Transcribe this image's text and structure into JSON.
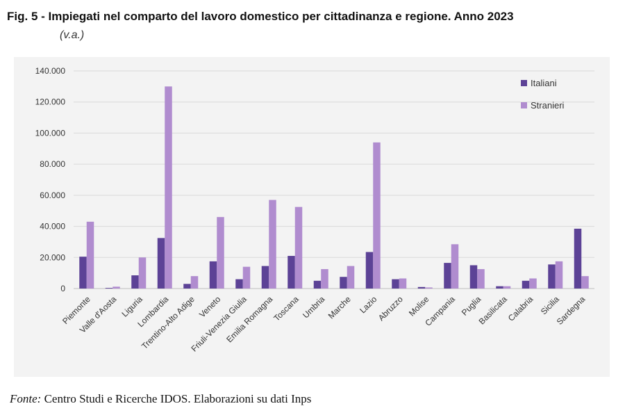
{
  "title": "Fig. 5 - Impiegati nel comparto del lavoro domestico per cittadinanza e regione. Anno 2023",
  "subtitle": "(v.a.)",
  "source": {
    "label": "Fonte:",
    "text": "Centro Studi e Ricerche IDOS. Elaborazioni su dati Inps"
  },
  "colors": {
    "italiani": "#5c4296",
    "stranieri": "#b08ccf",
    "grid": "#d9d9d9",
    "axis_text": "#333333"
  },
  "chart_data": {
    "type": "bar",
    "title": "Fig. 5 - Impiegati nel comparto del lavoro domestico per cittadinanza e regione. Anno 2023",
    "xlabel": "",
    "ylabel": "",
    "ylim": [
      0,
      140000
    ],
    "yticks": [
      "0",
      "20.000",
      "40.000",
      "60.000",
      "80.000",
      "100.000",
      "120.000",
      "140.000"
    ],
    "legend_position": "top-right",
    "categories": [
      "Piemonte",
      "Valle d'Aosta",
      "Liguria",
      "Lombardia",
      "Trentino-Alto Adige",
      "Veneto",
      "Friuli-Venezia Giulia",
      "Emilia Romagna",
      "Toscana",
      "Umbria",
      "Marche",
      "Lazio",
      "Abruzzo",
      "Molise",
      "Campania",
      "Puglia",
      "Basilicata",
      "Calabria",
      "Sicilia",
      "Sardegna"
    ],
    "series": [
      {
        "name": "Italiani",
        "values": [
          20500,
          400,
          8500,
          32500,
          3000,
          17500,
          6000,
          14500,
          21000,
          5000,
          7500,
          23500,
          6000,
          1000,
          16500,
          15000,
          1500,
          5000,
          15500,
          38500
        ]
      },
      {
        "name": "Stranieri",
        "values": [
          43000,
          1200,
          20000,
          130000,
          8000,
          46000,
          14000,
          57000,
          52500,
          12500,
          14500,
          94000,
          6500,
          700,
          28500,
          12500,
          1500,
          6500,
          17500,
          8000
        ]
      }
    ]
  }
}
